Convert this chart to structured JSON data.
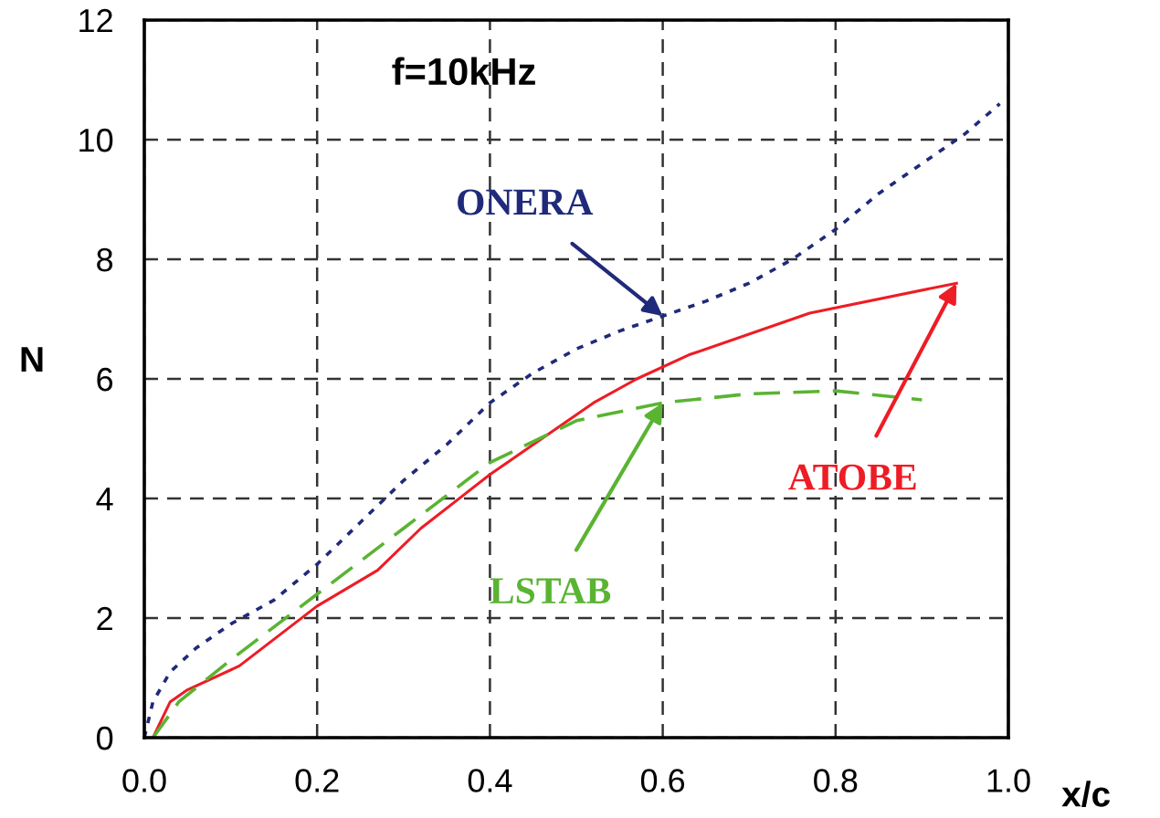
{
  "chart_data": {
    "type": "line",
    "xlabel": "x/c",
    "ylabel": "N",
    "annotations": [
      "f=10kHz"
    ],
    "xlim": [
      0,
      1
    ],
    "ylim": [
      0,
      12
    ],
    "xticks": [
      {
        "value": 0,
        "label": "0.0"
      },
      {
        "value": 0.2,
        "label": "0.2"
      },
      {
        "value": 0.4,
        "label": "0.4"
      },
      {
        "value": 0.6,
        "label": "0.6"
      },
      {
        "value": 0.8,
        "label": "0.8"
      },
      {
        "value": 1,
        "label": "1.0"
      }
    ],
    "yticks": [
      0,
      2,
      4,
      6,
      8,
      10,
      12
    ],
    "grid": true,
    "legend": false,
    "series": [
      {
        "name": "ONERA",
        "color": "#1f2a7a",
        "line_style": "dotted",
        "x": [
          0.0,
          0.01,
          0.03,
          0.06,
          0.1,
          0.15,
          0.2,
          0.25,
          0.3,
          0.35,
          0.4,
          0.45,
          0.5,
          0.55,
          0.6,
          0.65,
          0.7,
          0.75,
          0.8,
          0.85,
          0.9,
          0.95,
          0.99
        ],
        "values": [
          0,
          0.6,
          1.1,
          1.5,
          1.9,
          2.3,
          2.9,
          3.6,
          4.3,
          4.9,
          5.6,
          6.1,
          6.5,
          6.8,
          7.05,
          7.3,
          7.6,
          8.0,
          8.5,
          9.1,
          9.6,
          10.1,
          10.6
        ]
      },
      {
        "name": "ATOBE",
        "color": "#ee1c25",
        "line_style": "solid",
        "x": [
          0.01,
          0.03,
          0.05,
          0.11,
          0.2,
          0.27,
          0.32,
          0.4,
          0.46,
          0.52,
          0.57,
          0.63,
          0.77,
          0.94
        ],
        "values": [
          0,
          0.6,
          0.8,
          1.2,
          2.2,
          2.8,
          3.5,
          4.4,
          5.0,
          5.6,
          6.0,
          6.4,
          7.1,
          7.6
        ]
      },
      {
        "name": "LSTAB",
        "color": "#5ab432",
        "line_style": "dashed",
        "x": [
          0.01,
          0.04,
          0.1,
          0.2,
          0.3,
          0.4,
          0.5,
          0.6,
          0.7,
          0.8,
          0.9
        ],
        "values": [
          0,
          0.6,
          1.3,
          2.4,
          3.5,
          4.6,
          5.3,
          5.6,
          5.75,
          5.8,
          5.65
        ]
      }
    ]
  }
}
